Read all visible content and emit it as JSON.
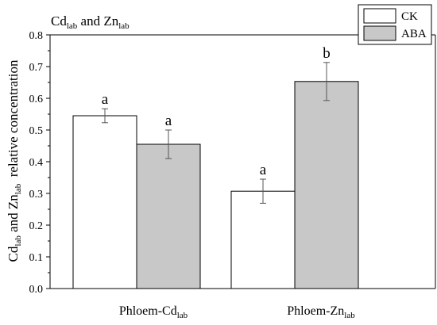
{
  "colors": {
    "series_ck": "#ffffff",
    "series_aba": "#c8c8c8",
    "axis": "#000000",
    "error_bar": "#555555"
  },
  "chart_data": {
    "type": "bar",
    "title": {
      "base1": "Cd",
      "sub1": "lab",
      "mid": " and Zn",
      "sub2": "lab"
    },
    "ylabel": {
      "base1": "Cd",
      "sub1": "lab",
      "mid": " and Zn",
      "sub2": "lab",
      "rest": "  relative concentration"
    },
    "xlabel": "",
    "ylim": [
      0,
      0.8
    ],
    "yticks": [
      "0.0",
      "0.1",
      "0.2",
      "0.3",
      "0.4",
      "0.5",
      "0.6",
      "0.7",
      "0.8"
    ],
    "grid": false,
    "legend_position": "top-right",
    "categories": [
      {
        "base": "Phloem-Cd",
        "sub": "lab"
      },
      {
        "base": "Phloem-Zn",
        "sub": "lab"
      }
    ],
    "series": [
      {
        "name": "CK",
        "values": [
          0.545,
          0.307
        ],
        "errors": [
          0.022,
          0.038
        ],
        "letters": [
          "a",
          "a"
        ]
      },
      {
        "name": "ABA",
        "values": [
          0.455,
          0.653
        ],
        "errors": [
          0.045,
          0.06
        ],
        "letters": [
          "a",
          "b"
        ]
      }
    ]
  }
}
